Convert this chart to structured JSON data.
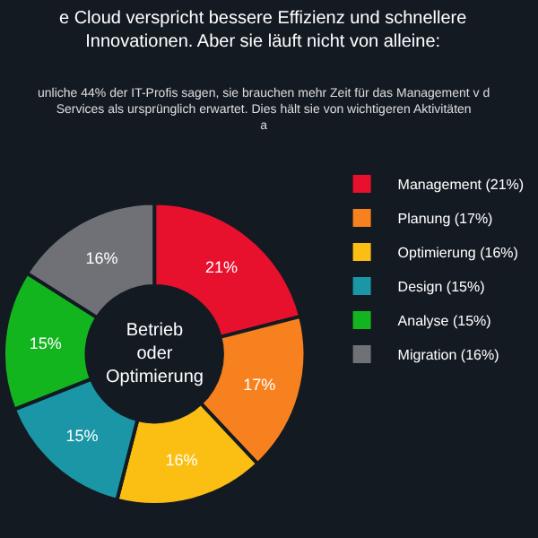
{
  "chart_data": {
    "type": "donut",
    "title": "e Cloud verspricht bessere Effizienz und schnellere Innovationen. Aber sie läuft nicht von alleine:",
    "subtitle": "unliche 44% der IT-Profis sagen, sie brauchen mehr Zeit für das Management v d Services als ursprünglich erwartet. Dies hält sie von wichtigeren Aktivitäten a",
    "annotations": [
      "Betrieb oder Optimierung"
    ],
    "categories": [
      "Management (21%)",
      "Planung (17%)",
      "Optimierung (16%)",
      "Design (15%)",
      "Analyse (15%)",
      "Migration (16%)"
    ],
    "values": [
      21,
      17,
      16,
      15,
      15,
      16
    ],
    "value_labels": [
      "21%",
      "17%",
      "16%",
      "15%",
      "15%",
      "16%"
    ],
    "colors": [
      "#e8112d",
      "#f7811e",
      "#fbbf14",
      "#1a96a6",
      "#13b51f",
      "#6f7177"
    ],
    "legend": "right"
  }
}
